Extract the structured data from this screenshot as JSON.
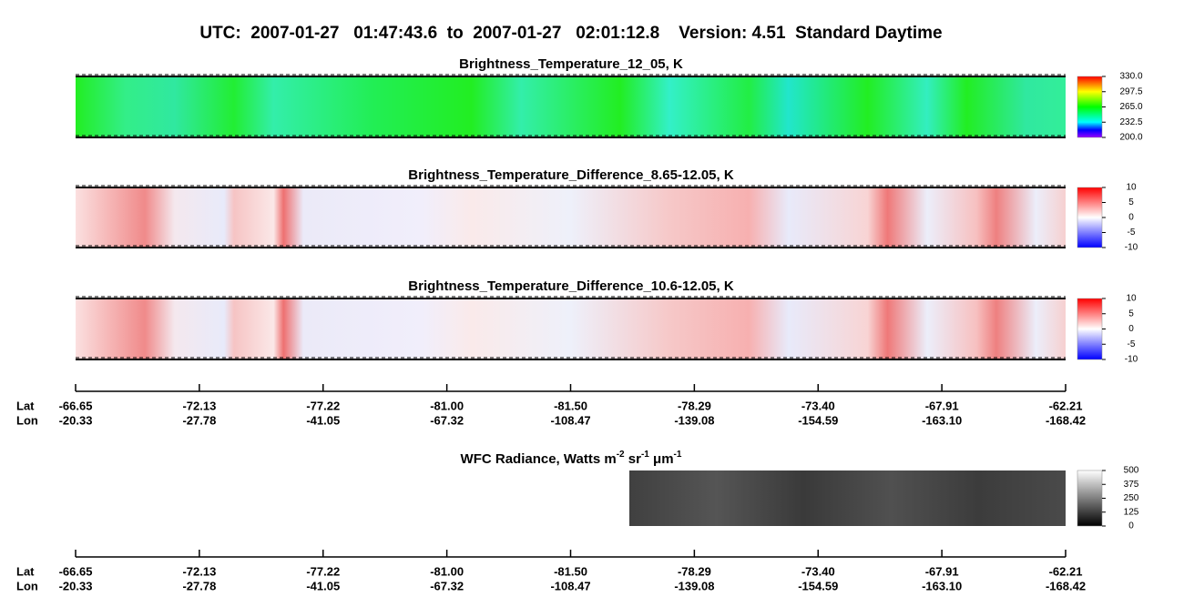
{
  "title": "UTC:  2007-01-27   01:47:43.6  to  2007-01-27   02:01:12.8    Version: 4.51  Standard Daytime",
  "panels": [
    {
      "title": "Brightness_Temperature_12_05, K",
      "colorbar_ticks": [
        {
          "value": 330,
          "label": "330.0"
        },
        {
          "value": 297.5,
          "label": "297.5"
        },
        {
          "value": 265,
          "label": "265.0"
        },
        {
          "value": 232.5,
          "label": "232.5"
        },
        {
          "value": 200,
          "label": "200.0"
        }
      ]
    },
    {
      "title": "Brightness_Temperature_Difference_8.65-12.05, K",
      "colorbar_ticks": [
        10,
        5,
        0,
        -5,
        -10
      ]
    },
    {
      "title": "Brightness_Temperature_Difference_10.6-12.05, K",
      "colorbar_ticks": [
        10,
        5,
        0,
        -5,
        -10
      ]
    },
    {
      "title_parts": [
        "WFC Radiance, Watts m",
        "-2",
        " sr",
        "-1",
        " μm",
        "-1"
      ],
      "colorbar_ticks": [
        500,
        375,
        250,
        125,
        0
      ]
    }
  ],
  "track_axis": {
    "lat_label": "Lat",
    "lon_label": "Lon",
    "lat": [
      "-66.65",
      "-72.13",
      "-77.22",
      "-81.00",
      "-81.50",
      "-78.29",
      "-73.40",
      "-67.91",
      "-62.21"
    ],
    "lon": [
      "-20.33",
      "-27.78",
      "-41.05",
      "-67.32",
      "-108.47",
      "-139.08",
      "-154.59",
      "-163.10",
      "-168.42"
    ]
  }
}
